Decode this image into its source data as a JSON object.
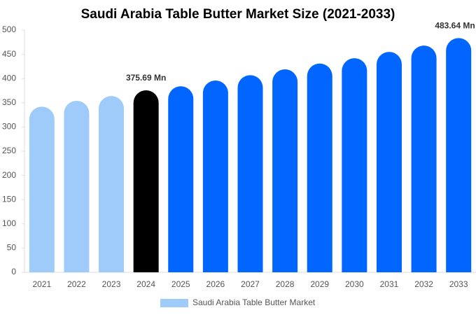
{
  "chart_data": {
    "type": "bar",
    "title": "Saudi Arabia Table Butter Market Size (2021-2033)",
    "categories": [
      "2021",
      "2022",
      "2023",
      "2024",
      "2025",
      "2026",
      "2027",
      "2028",
      "2029",
      "2030",
      "2031",
      "2032",
      "2033"
    ],
    "series": [
      {
        "name": "Saudi Arabia Table Butter Market",
        "color": "#9fcbfb",
        "values": [
          342,
          354,
          364,
          375.69,
          384,
          396,
          407,
          419,
          431,
          442,
          455,
          468,
          483.64
        ],
        "value_labels": [
          null,
          null,
          null,
          "375.69 Mn",
          null,
          null,
          null,
          null,
          null,
          null,
          null,
          null,
          "483.64 Mn"
        ],
        "colors": [
          "#9fcbfb",
          "#9fcbfb",
          "#9fcbfb",
          "#000000",
          "#0066ff",
          "#0066ff",
          "#0066ff",
          "#0066ff",
          "#0066ff",
          "#0066ff",
          "#0066ff",
          "#0066ff",
          "#0066ff"
        ]
      }
    ],
    "ylim": [
      0,
      500
    ],
    "yticks": [
      0,
      50,
      100,
      150,
      200,
      250,
      300,
      350,
      400,
      450,
      500
    ],
    "grid": false
  }
}
